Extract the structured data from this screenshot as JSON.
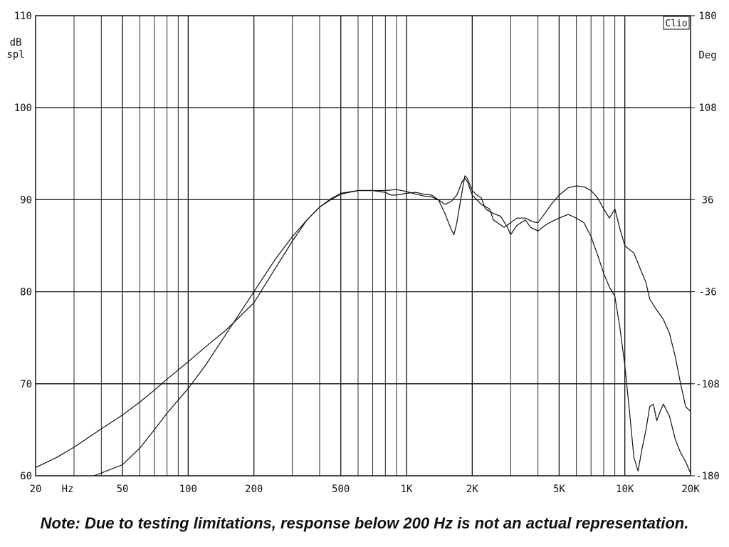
{
  "chart_data": {
    "type": "line",
    "brand_label": "Clio",
    "x_scale": "log",
    "xlim": [
      20,
      20000
    ],
    "ylim": [
      60,
      110
    ],
    "y2lim": [
      -180,
      180
    ],
    "grid": true,
    "x_unit_label": "Hz",
    "y_unit_label": [
      "dB",
      "spl"
    ],
    "y2_unit_label": "Deg",
    "x_ticks": [
      {
        "value": 20,
        "label": "20"
      },
      {
        "value": 50,
        "label": "50"
      },
      {
        "value": 100,
        "label": "100"
      },
      {
        "value": 200,
        "label": "200"
      },
      {
        "value": 500,
        "label": "500"
      },
      {
        "value": 1000,
        "label": "1K"
      },
      {
        "value": 2000,
        "label": "2K"
      },
      {
        "value": 5000,
        "label": "5K"
      },
      {
        "value": 10000,
        "label": "10K"
      },
      {
        "value": 20000,
        "label": "20K"
      }
    ],
    "y_ticks": [
      {
        "value": 60,
        "label": "60"
      },
      {
        "value": 70,
        "label": "70"
      },
      {
        "value": 80,
        "label": "80"
      },
      {
        "value": 90,
        "label": "90"
      },
      {
        "value": 100,
        "label": "100"
      },
      {
        "value": 110,
        "label": "110"
      }
    ],
    "y2_ticks": [
      {
        "value": -180,
        "label": "-180"
      },
      {
        "value": -108,
        "label": "-108"
      },
      {
        "value": -36,
        "label": "-36"
      },
      {
        "value": 36,
        "label": "36"
      },
      {
        "value": 108,
        "label": "108"
      },
      {
        "value": 180,
        "label": "180"
      }
    ],
    "series": [
      {
        "points": [
          [
            20,
            60.9
          ],
          [
            25,
            62.0
          ],
          [
            30,
            63.1
          ],
          [
            40,
            65.1
          ],
          [
            50,
            66.6
          ],
          [
            60,
            68.0
          ],
          [
            70,
            69.3
          ],
          [
            80,
            70.5
          ],
          [
            100,
            72.4
          ],
          [
            120,
            74.0
          ],
          [
            150,
            75.9
          ],
          [
            200,
            78.8
          ],
          [
            250,
            82.5
          ],
          [
            300,
            85.5
          ],
          [
            350,
            87.8
          ],
          [
            400,
            89.2
          ],
          [
            450,
            90.0
          ],
          [
            500,
            90.6
          ],
          [
            600,
            91.0
          ],
          [
            700,
            91.0
          ],
          [
            800,
            90.8
          ],
          [
            850,
            90.5
          ],
          [
            900,
            90.5
          ],
          [
            1000,
            90.7
          ],
          [
            1100,
            90.8
          ],
          [
            1200,
            90.6
          ],
          [
            1300,
            90.5
          ],
          [
            1400,
            90.0
          ],
          [
            1500,
            88.5
          ],
          [
            1600,
            86.8
          ],
          [
            1650,
            86.2
          ],
          [
            1700,
            87.5
          ],
          [
            1800,
            91.0
          ],
          [
            1850,
            92.6
          ],
          [
            1900,
            92.3
          ],
          [
            2000,
            91.0
          ],
          [
            2100,
            90.5
          ],
          [
            2200,
            90.2
          ],
          [
            2300,
            89.0
          ],
          [
            2500,
            88.5
          ],
          [
            2700,
            88.2
          ],
          [
            2900,
            87.0
          ],
          [
            3000,
            86.2
          ],
          [
            3200,
            87.2
          ],
          [
            3500,
            87.8
          ],
          [
            3700,
            87.0
          ],
          [
            4000,
            86.6
          ],
          [
            4300,
            87.2
          ],
          [
            4600,
            87.6
          ],
          [
            5000,
            88.0
          ],
          [
            5500,
            88.4
          ],
          [
            6000,
            88.0
          ],
          [
            6500,
            87.5
          ],
          [
            7000,
            86.0
          ],
          [
            7500,
            84.0
          ],
          [
            8000,
            82.0
          ],
          [
            8500,
            80.5
          ],
          [
            9000,
            79.5
          ],
          [
            9500,
            76.0
          ],
          [
            10000,
            72.0
          ],
          [
            10500,
            67.0
          ],
          [
            11000,
            62.0
          ],
          [
            11500,
            60.5
          ],
          [
            12000,
            63.0
          ],
          [
            12500,
            65.0
          ],
          [
            13000,
            67.5
          ],
          [
            13500,
            67.8
          ],
          [
            14000,
            66.0
          ],
          [
            15000,
            67.8
          ],
          [
            16000,
            66.5
          ],
          [
            17000,
            64.0
          ],
          [
            18000,
            62.5
          ],
          [
            19000,
            61.5
          ],
          [
            20000,
            60.3
          ]
        ]
      },
      {
        "points": [
          [
            37,
            60.0
          ],
          [
            40,
            60.3
          ],
          [
            50,
            61.2
          ],
          [
            60,
            63.0
          ],
          [
            70,
            65.0
          ],
          [
            80,
            66.8
          ],
          [
            100,
            69.5
          ],
          [
            120,
            72.0
          ],
          [
            150,
            75.5
          ],
          [
            200,
            80.0
          ],
          [
            250,
            83.5
          ],
          [
            300,
            86.0
          ],
          [
            350,
            87.8
          ],
          [
            400,
            89.2
          ],
          [
            450,
            90.1
          ],
          [
            500,
            90.7
          ],
          [
            600,
            91.0
          ],
          [
            700,
            91.0
          ],
          [
            800,
            91.0
          ],
          [
            900,
            91.1
          ],
          [
            1000,
            90.9
          ],
          [
            1100,
            90.6
          ],
          [
            1200,
            90.4
          ],
          [
            1300,
            90.3
          ],
          [
            1400,
            90.0
          ],
          [
            1500,
            89.5
          ],
          [
            1600,
            89.8
          ],
          [
            1700,
            90.5
          ],
          [
            1800,
            92.0
          ],
          [
            1850,
            92.3
          ],
          [
            1900,
            92.0
          ],
          [
            2000,
            90.5
          ],
          [
            2100,
            90.0
          ],
          [
            2200,
            89.5
          ],
          [
            2400,
            89.0
          ],
          [
            2500,
            87.8
          ],
          [
            2800,
            87.0
          ],
          [
            3000,
            87.5
          ],
          [
            3200,
            88.0
          ],
          [
            3500,
            88.0
          ],
          [
            3800,
            87.6
          ],
          [
            4000,
            87.5
          ],
          [
            4300,
            88.5
          ],
          [
            4600,
            89.5
          ],
          [
            5000,
            90.5
          ],
          [
            5500,
            91.3
          ],
          [
            6000,
            91.5
          ],
          [
            6500,
            91.4
          ],
          [
            7000,
            91.0
          ],
          [
            7500,
            90.2
          ],
          [
            8000,
            89.0
          ],
          [
            8500,
            88.0
          ],
          [
            9000,
            89.0
          ],
          [
            9500,
            86.8
          ],
          [
            10000,
            85.0
          ],
          [
            11000,
            84.2
          ],
          [
            12000,
            82.0
          ],
          [
            12500,
            81.0
          ],
          [
            13000,
            79.2
          ],
          [
            14000,
            78.0
          ],
          [
            15000,
            77.0
          ],
          [
            16000,
            75.5
          ],
          [
            17000,
            73.0
          ],
          [
            18000,
            70.0
          ],
          [
            19000,
            67.5
          ],
          [
            20000,
            67.0
          ]
        ]
      }
    ]
  },
  "note": "Note:  Due to testing limitations, response below 200 Hz is not an actual representation."
}
